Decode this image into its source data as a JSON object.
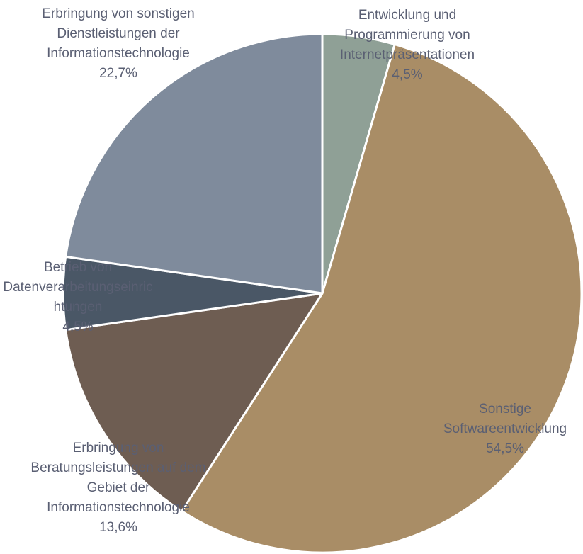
{
  "chart_data": {
    "type": "pie",
    "categories": [
      "Entwicklung und Programmierung von Internetpräsentationen",
      "Sonstige Softwareentwicklung",
      "Erbringung von Beratungsleistungen auf dem Gebiet der Informationstechnologie",
      "Betrieb von Datenverarbeitungseinrichtungen",
      "Erbringung von sonstigen Dienstleistungen der Informationstechnologie"
    ],
    "values": [
      4.5,
      54.5,
      13.6,
      4.5,
      22.7
    ],
    "value_labels": [
      "4,5%",
      "54,5%",
      "13,6%",
      "4,5%",
      "22,7%"
    ],
    "colors": [
      "#8fa096",
      "#a98d66",
      "#6e5d52",
      "#4a5766",
      "#7f8b9c"
    ]
  }
}
